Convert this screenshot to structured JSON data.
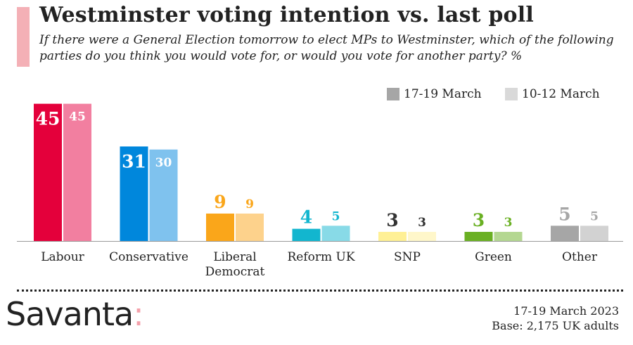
{
  "title": "Westminster voting intention vs. last poll",
  "subtitle": "If there were a General Election tomorrow to elect MPs to Westminster, which of the following parties do you think you would vote for, or would you vote for another party? %",
  "legend": [
    {
      "label": "17-19 March",
      "color": "#a6a6a6"
    },
    {
      "label": "10-12 March",
      "color": "#d9d9d9"
    }
  ],
  "chart_data": {
    "type": "bar",
    "categories": [
      "Labour",
      "Conservative",
      "Liberal Democrat",
      "Reform UK",
      "SNP",
      "Green",
      "Other"
    ],
    "series": [
      {
        "name": "17-19 March",
        "values": [
          45,
          31,
          9,
          4,
          3,
          3,
          5
        ]
      },
      {
        "name": "10-12 March",
        "values": [
          45,
          30,
          9,
          5,
          3,
          3,
          5
        ]
      }
    ],
    "colors": {
      "17-19 March": [
        "#e4003b",
        "#0087dc",
        "#faa61a",
        "#12b6cf",
        "#fff095",
        "#6ab023",
        "#a6a6a6"
      ],
      "10-12 March": [
        "#f27fa0",
        "#7fc2ee",
        "#fdd28c",
        "#88dae7",
        "#fff7ca",
        "#b4d791",
        "#d2d2d2"
      ]
    },
    "label_colors": [
      "#e4003b",
      "#0087dc",
      "#faa61a",
      "#12b6cf",
      "#333333",
      "#6ab023",
      "#a6a6a6"
    ],
    "ylim": [
      0,
      47
    ],
    "grid": false,
    "legend_position": "top-right"
  },
  "logo": {
    "text": "Savanta",
    "colon": ":"
  },
  "footer": {
    "date": "17-19 March 2023",
    "base": "Base: 2,175 UK adults"
  }
}
